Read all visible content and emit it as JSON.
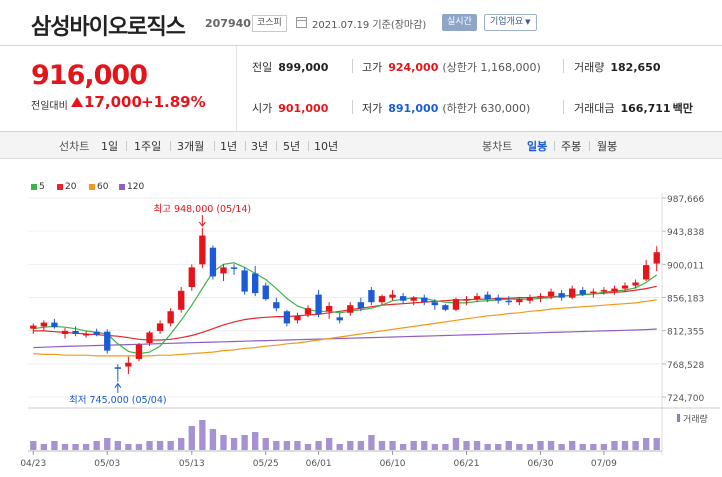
{
  "header": {
    "name": "삼성바이오로직스",
    "code": "207940",
    "market": "코스피",
    "date": "2021.07.19 기준(장마감)",
    "live_button": "실시간",
    "info_button": "기업개요",
    "info_caret": "▼"
  },
  "price": {
    "current": "916,000",
    "change_label": "전일대비",
    "change": "17,000",
    "change_pct": "+1.89%",
    "up_color": "#e5141b",
    "down_color": "#1c5bd6"
  },
  "stats": {
    "prev_close_label": "전일",
    "prev_close": "899,000",
    "high_label": "고가",
    "high": "924,000",
    "upper_limit": "(상한가 1,168,000)",
    "volume_label": "거래량",
    "volume": "182,650",
    "open_label": "시가",
    "open": "901,000",
    "low_label": "저가",
    "low": "891,000",
    "lower_limit": "(하한가 630,000)",
    "value_label": "거래대금",
    "value": "166,711",
    "value_unit": "백만"
  },
  "toolbar": {
    "line_chart_label": "선차트",
    "periods": [
      "1일",
      "1주일",
      "3개월",
      "1년",
      "3년",
      "5년",
      "10년"
    ],
    "candle_chart_label": "봉차트",
    "candle_periods": [
      "일봉",
      "주봉",
      "월봉"
    ],
    "selected_candle": "일봉"
  },
  "legend": [
    {
      "name": "5",
      "color": "#3cb54a"
    },
    {
      "name": "20",
      "color": "#e8262b"
    },
    {
      "name": "60",
      "color": "#f39a1e"
    },
    {
      "name": "120",
      "color": "#8e5fc2"
    }
  ],
  "chart_data": {
    "type": "candlestick",
    "y_ticks": [
      "987,666",
      "943,838",
      "900,011",
      "856,183",
      "812,355",
      "768,528",
      "724,700"
    ],
    "ylim": [
      724700,
      987666
    ],
    "x_ticks": [
      "04/23",
      "05/03",
      "05/13",
      "05/25",
      "06/01",
      "06/10",
      "06/21",
      "06/30",
      "07/09"
    ],
    "volume_label": "거래량",
    "high_annotation": "최고 948,000 (05/14)",
    "low_annotation": "최저 745,000 (05/04)",
    "candles": [
      {
        "o": 815000,
        "h": 822000,
        "l": 808000,
        "c": 819000
      },
      {
        "o": 818000,
        "h": 826000,
        "l": 812000,
        "c": 823000
      },
      {
        "o": 823000,
        "h": 828000,
        "l": 815000,
        "c": 817000
      },
      {
        "o": 808000,
        "h": 816000,
        "l": 802000,
        "c": 812000
      },
      {
        "o": 812000,
        "h": 818000,
        "l": 805000,
        "c": 808000
      },
      {
        "o": 806000,
        "h": 812000,
        "l": 803000,
        "c": 808000
      },
      {
        "o": 811000,
        "h": 815000,
        "l": 805000,
        "c": 807000
      },
      {
        "o": 811000,
        "h": 814000,
        "l": 782000,
        "c": 786000
      },
      {
        "o": 764000,
        "h": 768000,
        "l": 745000,
        "c": 762000
      },
      {
        "o": 765000,
        "h": 778000,
        "l": 755000,
        "c": 770000
      },
      {
        "o": 775000,
        "h": 796000,
        "l": 772000,
        "c": 794000
      },
      {
        "o": 796000,
        "h": 812000,
        "l": 792000,
        "c": 810000
      },
      {
        "o": 812000,
        "h": 826000,
        "l": 808000,
        "c": 822000
      },
      {
        "o": 822000,
        "h": 842000,
        "l": 818000,
        "c": 838000
      },
      {
        "o": 840000,
        "h": 870000,
        "l": 836000,
        "c": 865000
      },
      {
        "o": 870000,
        "h": 900000,
        "l": 865000,
        "c": 896000
      },
      {
        "o": 900000,
        "h": 948000,
        "l": 895000,
        "c": 938000
      },
      {
        "o": 922000,
        "h": 925000,
        "l": 880000,
        "c": 884000
      },
      {
        "o": 888000,
        "h": 900000,
        "l": 878000,
        "c": 896000
      },
      {
        "o": 896000,
        "h": 900000,
        "l": 886000,
        "c": 894000
      },
      {
        "o": 892000,
        "h": 896000,
        "l": 860000,
        "c": 864000
      },
      {
        "o": 888000,
        "h": 898000,
        "l": 858000,
        "c": 862000
      },
      {
        "o": 872000,
        "h": 876000,
        "l": 852000,
        "c": 854000
      },
      {
        "o": 850000,
        "h": 856000,
        "l": 838000,
        "c": 842000
      },
      {
        "o": 838000,
        "h": 840000,
        "l": 818000,
        "c": 822000
      },
      {
        "o": 826000,
        "h": 836000,
        "l": 822000,
        "c": 832000
      },
      {
        "o": 834000,
        "h": 846000,
        "l": 830000,
        "c": 842000
      },
      {
        "o": 860000,
        "h": 866000,
        "l": 830000,
        "c": 834000
      },
      {
        "o": 838000,
        "h": 850000,
        "l": 828000,
        "c": 845000
      },
      {
        "o": 830000,
        "h": 836000,
        "l": 822000,
        "c": 826000
      },
      {
        "o": 836000,
        "h": 850000,
        "l": 832000,
        "c": 846000
      },
      {
        "o": 850000,
        "h": 856000,
        "l": 838000,
        "c": 842000
      },
      {
        "o": 866000,
        "h": 870000,
        "l": 846000,
        "c": 850000
      },
      {
        "o": 850000,
        "h": 860000,
        "l": 846000,
        "c": 858000
      },
      {
        "o": 856000,
        "h": 866000,
        "l": 852000,
        "c": 860000
      },
      {
        "o": 858000,
        "h": 862000,
        "l": 848000,
        "c": 852000
      },
      {
        "o": 852000,
        "h": 858000,
        "l": 846000,
        "c": 856000
      },
      {
        "o": 856000,
        "h": 860000,
        "l": 846000,
        "c": 850000
      },
      {
        "o": 850000,
        "h": 854000,
        "l": 840000,
        "c": 846000
      },
      {
        "o": 846000,
        "h": 848000,
        "l": 838000,
        "c": 840000
      },
      {
        "o": 840000,
        "h": 856000,
        "l": 838000,
        "c": 854000
      },
      {
        "o": 852000,
        "h": 858000,
        "l": 846000,
        "c": 854000
      },
      {
        "o": 854000,
        "h": 862000,
        "l": 850000,
        "c": 858000
      },
      {
        "o": 860000,
        "h": 864000,
        "l": 850000,
        "c": 854000
      },
      {
        "o": 856000,
        "h": 860000,
        "l": 848000,
        "c": 852000
      },
      {
        "o": 852000,
        "h": 858000,
        "l": 846000,
        "c": 850000
      },
      {
        "o": 850000,
        "h": 856000,
        "l": 846000,
        "c": 854000
      },
      {
        "o": 852000,
        "h": 860000,
        "l": 848000,
        "c": 856000
      },
      {
        "o": 856000,
        "h": 862000,
        "l": 850000,
        "c": 858000
      },
      {
        "o": 858000,
        "h": 868000,
        "l": 854000,
        "c": 864000
      },
      {
        "o": 862000,
        "h": 866000,
        "l": 852000,
        "c": 856000
      },
      {
        "o": 856000,
        "h": 872000,
        "l": 854000,
        "c": 868000
      },
      {
        "o": 866000,
        "h": 870000,
        "l": 858000,
        "c": 860000
      },
      {
        "o": 862000,
        "h": 868000,
        "l": 856000,
        "c": 864000
      },
      {
        "o": 864000,
        "h": 870000,
        "l": 860000,
        "c": 866000
      },
      {
        "o": 864000,
        "h": 872000,
        "l": 860000,
        "c": 868000
      },
      {
        "o": 868000,
        "h": 876000,
        "l": 864000,
        "c": 872000
      },
      {
        "o": 872000,
        "h": 880000,
        "l": 868000,
        "c": 876000
      },
      {
        "o": 880000,
        "h": 906000,
        "l": 878000,
        "c": 899000
      },
      {
        "o": 901000,
        "h": 924000,
        "l": 891000,
        "c": 916000
      }
    ],
    "ma5": [
      815000,
      817000,
      818000,
      817000,
      815000,
      812000,
      810000,
      808000,
      795000,
      785000,
      782000,
      784000,
      792000,
      808000,
      826000,
      846000,
      868000,
      890000,
      900000,
      902000,
      896000,
      888000,
      880000,
      868000,
      855000,
      845000,
      840000,
      838000,
      838000,
      836000,
      838000,
      840000,
      842000,
      846000,
      852000,
      854000,
      856000,
      855000,
      852000,
      850000,
      849000,
      849000,
      851000,
      852000,
      853000,
      854000,
      854000,
      854000,
      855000,
      856000,
      858000,
      859000,
      860000,
      861000,
      863000,
      865000,
      866000,
      869000,
      876000,
      886000
    ],
    "ma20": [
      812000,
      812000,
      811000,
      810000,
      809000,
      808000,
      807000,
      806000,
      805000,
      803000,
      801000,
      800000,
      800000,
      801000,
      803000,
      806000,
      810000,
      815000,
      820000,
      824000,
      827000,
      829000,
      830000,
      831000,
      831000,
      832000,
      833000,
      834000,
      836000,
      838000,
      840000,
      842000,
      844000,
      846000,
      847000,
      848000,
      849000,
      850000,
      851000,
      852000,
      853000,
      853000,
      854000,
      854000,
      855000,
      855000,
      856000,
      856000,
      857000,
      857000,
      858000,
      859000,
      860000,
      861000,
      862000,
      863000,
      864000,
      866000,
      868000,
      871000
    ],
    "ma60": [
      782000,
      781000,
      781000,
      780000,
      780000,
      780000,
      779000,
      779000,
      779000,
      779000,
      779000,
      779000,
      780000,
      780000,
      781000,
      782000,
      783000,
      784000,
      786000,
      787000,
      789000,
      790000,
      792000,
      793000,
      795000,
      796000,
      798000,
      800000,
      802000,
      804000,
      806000,
      808000,
      810000,
      812000,
      814000,
      816000,
      818000,
      820000,
      822000,
      824000,
      826000,
      828000,
      830000,
      832000,
      833000,
      835000,
      836000,
      838000,
      839000,
      841000,
      842000,
      843000,
      844000,
      845000,
      846000,
      847000,
      848000,
      849000,
      851000,
      853000
    ],
    "ma120": [
      790000,
      790500,
      791000,
      791500,
      792000,
      792400,
      792800,
      793200,
      793600,
      794000,
      794400,
      794800,
      795200,
      795600,
      796000,
      796400,
      796800,
      797200,
      797600,
      798000,
      798400,
      798800,
      799200,
      799600,
      800000,
      800400,
      800800,
      801200,
      801600,
      802000,
      802400,
      802800,
      803200,
      803600,
      804000,
      804400,
      804800,
      805200,
      805600,
      806000,
      806400,
      806800,
      807200,
      807600,
      808000,
      808400,
      808800,
      809200,
      809600,
      810000,
      810400,
      810800,
      811200,
      811600,
      812000,
      812400,
      812800,
      813200,
      813800,
      814500
    ],
    "volumes": [
      3,
      2,
      3,
      2,
      2,
      2,
      3,
      4,
      3,
      2,
      2,
      3,
      3,
      3,
      4,
      8,
      10,
      7,
      5,
      4,
      5,
      6,
      4,
      3,
      3,
      3,
      2,
      3,
      4,
      2,
      3,
      3,
      5,
      3,
      3,
      2,
      3,
      3,
      2,
      2,
      4,
      3,
      3,
      2,
      2,
      3,
      2,
      2,
      3,
      3,
      2,
      3,
      2,
      2,
      2,
      3,
      3,
      3,
      4,
      4
    ]
  }
}
